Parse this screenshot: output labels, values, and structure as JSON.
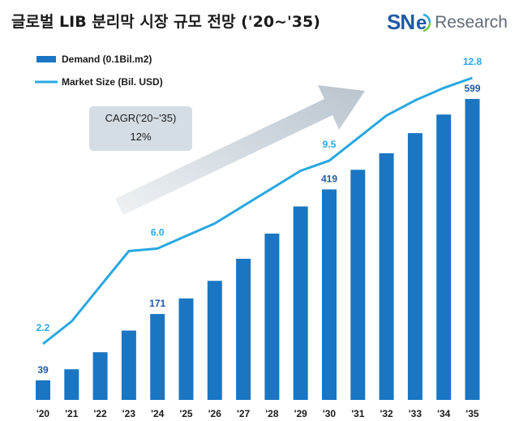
{
  "title": "글로벌 LIB 분리막 시장 규모 전망 ('20~'35)",
  "brand": {
    "sne": "SN",
    "research": "Research",
    "color": "#1f5aa6"
  },
  "annotation": {
    "title": "CAGR('20~'35)",
    "value": "12%"
  },
  "chart_data": {
    "type": "bar",
    "categories": [
      "'20",
      "'21",
      "'22",
      "'23",
      "'24",
      "'25",
      "'26",
      "'27",
      "'28",
      "'29",
      "'30",
      "'31",
      "'32",
      "'33",
      "'34",
      "'35"
    ],
    "series": [
      {
        "name": "Demand (0.1Bil.m2)",
        "type": "bar",
        "color": "#1a76c2",
        "values": [
          39,
          61,
          95,
          138,
          171,
          202,
          237,
          281,
          331,
          385,
          419,
          458,
          491,
          531,
          568,
          599
        ],
        "labels": [
          "39",
          "",
          "",
          "",
          "171",
          "",
          "",
          "",
          "",
          "",
          "419",
          "",
          "",
          "",
          "",
          "599"
        ]
      },
      {
        "name": "Market Size (Bil. USD)",
        "type": "line",
        "color": "#29a8e0",
        "values": [
          2.2,
          3.1,
          4.5,
          5.9,
          6.0,
          6.5,
          7.0,
          7.7,
          8.4,
          9.1,
          9.5,
          10.4,
          11.3,
          11.9,
          12.4,
          12.8
        ],
        "labels": [
          "2.2",
          "",
          "",
          "",
          "6.0",
          "",
          "",
          "",
          "",
          "",
          "9.5",
          "",
          "",
          "",
          "",
          "12.8"
        ]
      }
    ],
    "legend_position": "top-left",
    "grid": false
  }
}
